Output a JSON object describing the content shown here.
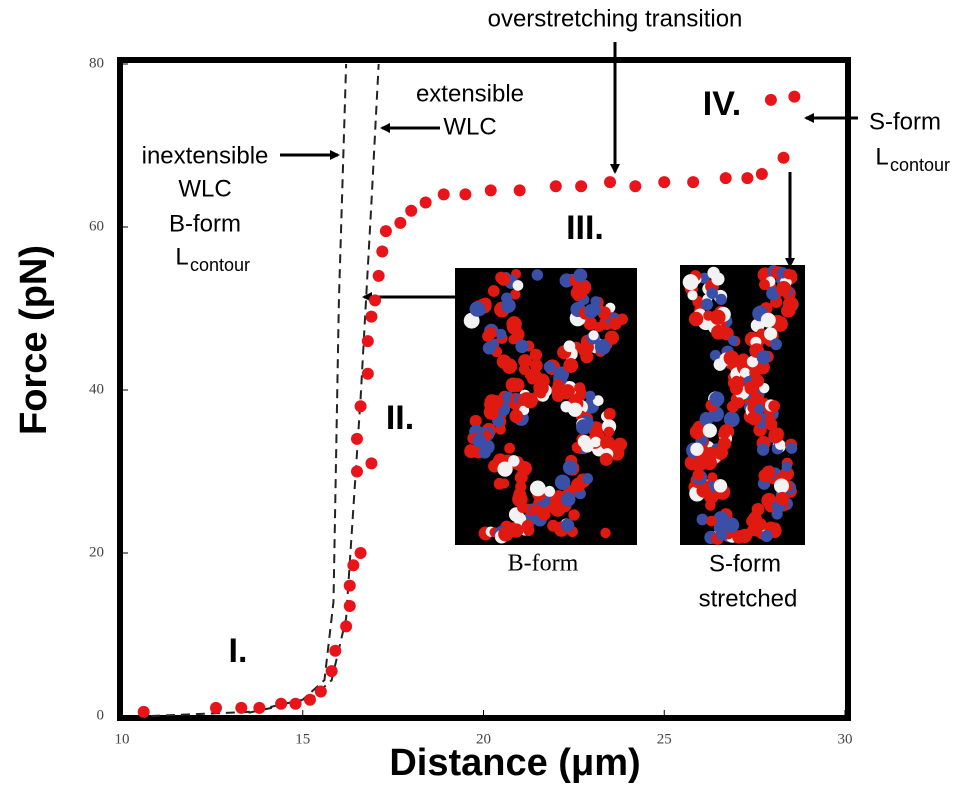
{
  "chart_data": {
    "type": "scatter",
    "x_label": "Distance (μm)",
    "y_label": "Force (pN)",
    "xlim": [
      10,
      30
    ],
    "ylim": [
      0,
      80
    ],
    "xticks": [
      10,
      15,
      20,
      25,
      30
    ],
    "yticks": [
      0,
      20,
      40,
      60,
      80
    ],
    "series": [
      {
        "type": "scatter",
        "color": "#e8141a",
        "x": [
          10.6,
          12.6,
          13.3,
          13.8,
          14.4,
          14.8,
          15.2,
          15.5,
          15.8,
          15.9,
          16.2,
          16.3,
          16.3,
          16.4,
          16.6,
          16.5,
          16.9,
          16.5,
          16.6,
          16.8,
          16.8,
          16.9,
          17.0,
          17.1,
          17.2,
          17.3,
          17.7,
          18.0,
          18.4,
          18.9,
          19.5,
          20.2,
          21.0,
          22.0,
          22.7,
          23.5,
          24.2,
          25.0,
          25.8,
          26.7,
          27.3,
          27.7,
          28.3,
          27.95,
          28.6
        ],
        "y": [
          0.5,
          1,
          1,
          1,
          1.5,
          1.5,
          2,
          3,
          5.5,
          8,
          11,
          13.5,
          16,
          18.5,
          20,
          30,
          31,
          34,
          38,
          42,
          46,
          49,
          51,
          54,
          57,
          59.5,
          60.5,
          62,
          63,
          64,
          64,
          64.5,
          64.5,
          65,
          65,
          65.5,
          65,
          65.5,
          65.5,
          66,
          66,
          66.5,
          68.5,
          75.6,
          76
        ]
      },
      {
        "type": "line",
        "dash": true,
        "color": "#222222",
        "x": [
          10.8,
          13.5,
          15.0,
          15.6,
          15.85,
          16.0,
          16.2
        ],
        "y": [
          0,
          0.5,
          2,
          4.4,
          14,
          51,
          80
        ]
      },
      {
        "type": "line",
        "dash": true,
        "color": "#222222",
        "x": [
          13.5,
          15.2,
          15.8,
          16.2,
          16.6,
          16.9,
          17.1
        ],
        "y": [
          0.4,
          2,
          4.4,
          12,
          39,
          63,
          80
        ]
      }
    ],
    "annotations": [
      "overstretching transition",
      "extensible",
      "WLC",
      "inextensible",
      "WLC",
      "B-form",
      "L",
      "contour",
      "I.",
      "II.",
      "III.",
      "IV.",
      "S-form",
      "L",
      "contour",
      "B-form",
      "S-form",
      "stretched"
    ]
  }
}
